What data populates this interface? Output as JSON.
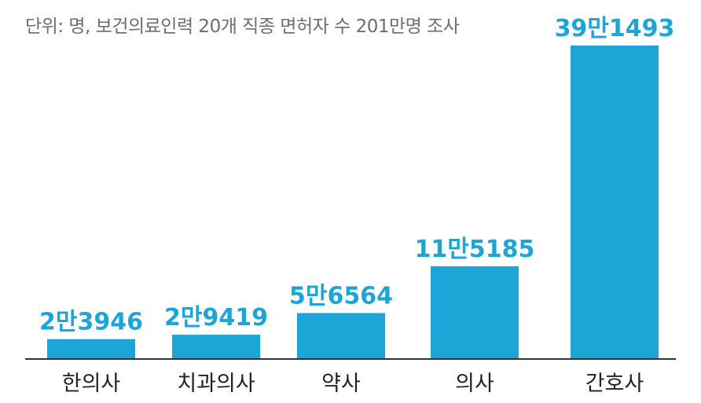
{
  "subtitle": "단위: 명, 보건의료인력 20개 직종 면허자 수 201만명 조사",
  "chart_data": {
    "type": "bar",
    "categories": [
      "한의사",
      "치과의사",
      "약사",
      "의사",
      "간호사"
    ],
    "values": [
      23946,
      29419,
      56564,
      115185,
      391493
    ],
    "value_labels": [
      "2만3946",
      "2만9419",
      "5만6564",
      "11만5185",
      "39만1493"
    ],
    "title": "",
    "subtitle": "단위: 명, 보건의료인력 20개 직종 면허자 수 201만명 조사",
    "xlabel": "",
    "ylabel": "",
    "ylim": [
      0,
      391493
    ],
    "grid": false,
    "legend": "none",
    "bar_color": "#1ca6d8"
  }
}
